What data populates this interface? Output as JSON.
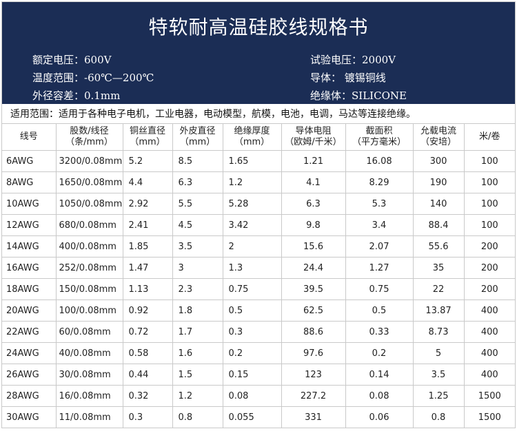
{
  "title": "特软耐高温硅胶线规格书",
  "specs": [
    {
      "left": "额定电压：600V",
      "right": "试验电压：2000V"
    },
    {
      "left": "温度范围：-60℃—200℃",
      "right": "导体：   镀锡铜线"
    },
    {
      "left": "外径容差：0.1mm",
      "right": "绝缘体：SILICONE"
    }
  ],
  "scope": "适用范围：适用于各种电子电机，工业电器，电动模型，航模，电池，电调，马达等连接绝缘。",
  "table": {
    "headers": [
      [
        "线号",
        ""
      ],
      [
        "股数/线径",
        "（条/mm）"
      ],
      [
        "铜丝直径",
        "（mm）"
      ],
      [
        "外皮直径",
        "（mm）"
      ],
      [
        "绝缘厚度",
        "（mm）"
      ],
      [
        "导体电阻",
        "（欧姆/千米）"
      ],
      [
        "截面积",
        "（平方毫米）"
      ],
      [
        "允载电流",
        "（安培）"
      ],
      [
        "米/卷",
        ""
      ]
    ],
    "rows": [
      [
        "6AWG",
        "3200/0.08mm",
        "5.2",
        "8.5",
        "1.65",
        "1.21",
        "16.08",
        "300",
        "100"
      ],
      [
        "8AWG",
        "1650/0.08mm",
        "4.4",
        "6.3",
        "1.2",
        "4.1",
        "8.29",
        "190",
        "100"
      ],
      [
        "10AWG",
        "1050/0.08mm",
        "2.92",
        "5.5",
        "5.28",
        "6.3",
        "5.3",
        "140",
        "100"
      ],
      [
        "12AWG",
        "680/0.08mm",
        "2.41",
        "4.5",
        "3.42",
        "9.8",
        "3.4",
        "88.4",
        "100"
      ],
      [
        "14AWG",
        "400/0.08mm",
        "1.85",
        "3.5",
        "2",
        "15.6",
        "2.07",
        "55.6",
        "200"
      ],
      [
        "16AWG",
        "252/0.08mm",
        "1.47",
        "3",
        "1.3",
        "24.4",
        "1.27",
        "35",
        "200"
      ],
      [
        "18AWG",
        "150/0.08mm",
        "1.13",
        "2.3",
        "0.75",
        "39.5",
        "0.75",
        "22",
        "200"
      ],
      [
        "20AWG",
        "100/0.08mm",
        "0.92",
        "1.8",
        "0.5",
        "62.5",
        "0.5",
        "13.87",
        "400"
      ],
      [
        "22AWG",
        "60/0.08mm",
        "0.72",
        "1.7",
        "0.3",
        "88.6",
        "0.33",
        "8.73",
        "400"
      ],
      [
        "24AWG",
        "40/0.08mm",
        "0.58",
        "1.6",
        "0.2",
        "97.6",
        "0.2",
        "5",
        "400"
      ],
      [
        "26AWG",
        "30/0.08mm",
        "0.44",
        "1.5",
        "0.15",
        "123",
        "0.14",
        "3.5",
        "400"
      ],
      [
        "28AWG",
        "16/0.08mm",
        "0.32",
        "1.2",
        "0.08",
        "227.2",
        "0.08",
        "1.25",
        "1500"
      ],
      [
        "30AWG",
        "11/0.08mm",
        "0.3",
        "0.8",
        "0.055",
        "331",
        "0.06",
        "0.8",
        "1500"
      ]
    ]
  },
  "colors": {
    "header_bg": "#1b2d55",
    "header_text": "#ffffff",
    "grid": "#c9c9c9"
  }
}
